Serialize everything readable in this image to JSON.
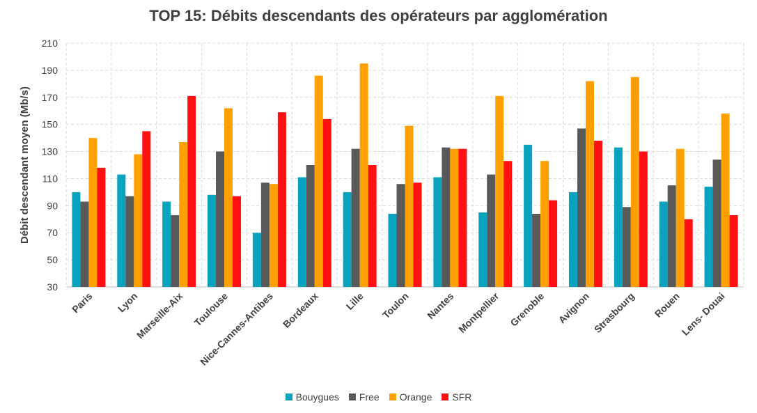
{
  "chart_data": {
    "type": "bar",
    "title": "TOP 15: Débits descendants des opérateurs par agglomération",
    "ylabel": "Débit descendant moyen (Mb/s)",
    "xlabel": "",
    "ylim": [
      30,
      210
    ],
    "yticks": [
      30,
      50,
      70,
      90,
      110,
      130,
      150,
      170,
      190,
      210
    ],
    "grid": true,
    "legend_position": "bottom",
    "categories": [
      "Paris",
      "Lyon",
      "Marseille-Aix",
      "Toulouse",
      "Nice-Cannes-Antibes",
      "Bordeaux",
      "Lille",
      "Toulon",
      "Nantes",
      "Montpellier",
      "Grenoble",
      "Avignon",
      "Strasbourg",
      "Rouen",
      "Lens- Douai"
    ],
    "series": [
      {
        "name": "Bouygues",
        "color": "#0aa3be",
        "values": [
          100,
          113,
          93,
          98,
          70,
          111,
          100,
          84,
          111,
          85,
          135,
          100,
          133,
          93,
          104
        ]
      },
      {
        "name": "Free",
        "color": "#595959",
        "values": [
          93,
          97,
          83,
          130,
          107,
          120,
          132,
          106,
          133,
          113,
          84,
          147,
          89,
          105,
          124
        ]
      },
      {
        "name": "Orange",
        "color": "#ffa000",
        "values": [
          140,
          128,
          137,
          162,
          106,
          186,
          195,
          149,
          132,
          171,
          123,
          182,
          185,
          132,
          158
        ]
      },
      {
        "name": "SFR",
        "color": "#ff1111",
        "values": [
          118,
          145,
          171,
          97,
          159,
          154,
          120,
          107,
          132,
          123,
          94,
          138,
          130,
          80,
          83
        ]
      }
    ]
  }
}
